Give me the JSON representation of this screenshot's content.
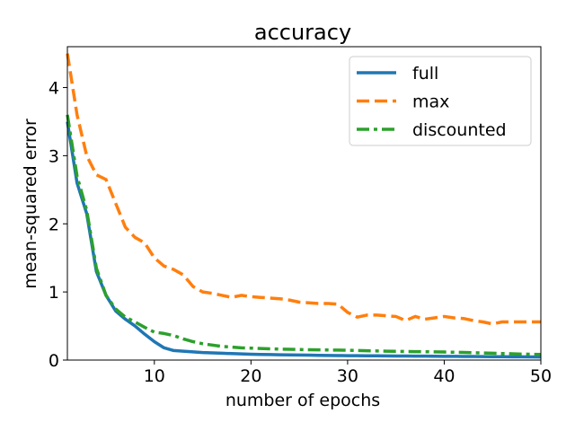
{
  "chart_data": {
    "type": "line",
    "title": "accuracy",
    "xlabel": "number of epochs",
    "ylabel": "mean-squared error",
    "xlim": [
      1,
      50
    ],
    "ylim": [
      0,
      4.6
    ],
    "xticks": [
      10,
      20,
      30,
      40,
      50
    ],
    "xtick_labels": [
      "10",
      "20",
      "30",
      "40",
      "50"
    ],
    "yticks": [
      0,
      1,
      2,
      3,
      4
    ],
    "ytick_labels": [
      "0",
      "1",
      "2",
      "3",
      "4"
    ],
    "grid": false,
    "legend_position": "top-right",
    "x": [
      1,
      2,
      3,
      4,
      5,
      6,
      7,
      8,
      9,
      10,
      11,
      12,
      13,
      14,
      15,
      16,
      17,
      18,
      19,
      20,
      21,
      22,
      23,
      24,
      25,
      26,
      27,
      28,
      29,
      30,
      31,
      32,
      33,
      34,
      35,
      36,
      37,
      38,
      39,
      40,
      41,
      42,
      43,
      44,
      45,
      46,
      47,
      48,
      49,
      50
    ],
    "series": [
      {
        "name": "full",
        "color": "#1f77b4",
        "style": "solid",
        "values": [
          3.5,
          2.6,
          2.15,
          1.3,
          0.95,
          0.72,
          0.6,
          0.5,
          0.38,
          0.27,
          0.18,
          0.14,
          0.13,
          0.12,
          0.11,
          0.105,
          0.1,
          0.095,
          0.09,
          0.085,
          0.082,
          0.08,
          0.078,
          0.076,
          0.074,
          0.072,
          0.07,
          0.068,
          0.066,
          0.065,
          0.064,
          0.063,
          0.062,
          0.061,
          0.06,
          0.059,
          0.058,
          0.057,
          0.056,
          0.055,
          0.054,
          0.053,
          0.052,
          0.051,
          0.05,
          0.049,
          0.048,
          0.047,
          0.046,
          0.045
        ]
      },
      {
        "name": "max",
        "color": "#ff7f0e",
        "style": "dashed",
        "values": [
          4.5,
          3.6,
          3.0,
          2.72,
          2.65,
          2.3,
          1.95,
          1.8,
          1.72,
          1.5,
          1.38,
          1.33,
          1.25,
          1.08,
          1.0,
          0.98,
          0.95,
          0.92,
          0.95,
          0.93,
          0.92,
          0.91,
          0.9,
          0.88,
          0.85,
          0.84,
          0.83,
          0.83,
          0.82,
          0.7,
          0.63,
          0.66,
          0.66,
          0.65,
          0.64,
          0.58,
          0.64,
          0.6,
          0.62,
          0.64,
          0.62,
          0.61,
          0.58,
          0.56,
          0.53,
          0.56,
          0.56,
          0.56,
          0.56,
          0.56
        ]
      },
      {
        "name": "discounted",
        "color": "#2ca02c",
        "style": "dashdot",
        "values": [
          3.6,
          2.7,
          2.2,
          1.35,
          0.95,
          0.75,
          0.63,
          0.56,
          0.48,
          0.41,
          0.39,
          0.36,
          0.31,
          0.27,
          0.24,
          0.22,
          0.2,
          0.19,
          0.18,
          0.175,
          0.17,
          0.165,
          0.16,
          0.158,
          0.155,
          0.152,
          0.15,
          0.148,
          0.146,
          0.144,
          0.14,
          0.137,
          0.134,
          0.13,
          0.128,
          0.126,
          0.124,
          0.122,
          0.12,
          0.118,
          0.115,
          0.112,
          0.108,
          0.104,
          0.1,
          0.096,
          0.092,
          0.088,
          0.085,
          0.082
        ]
      }
    ]
  }
}
